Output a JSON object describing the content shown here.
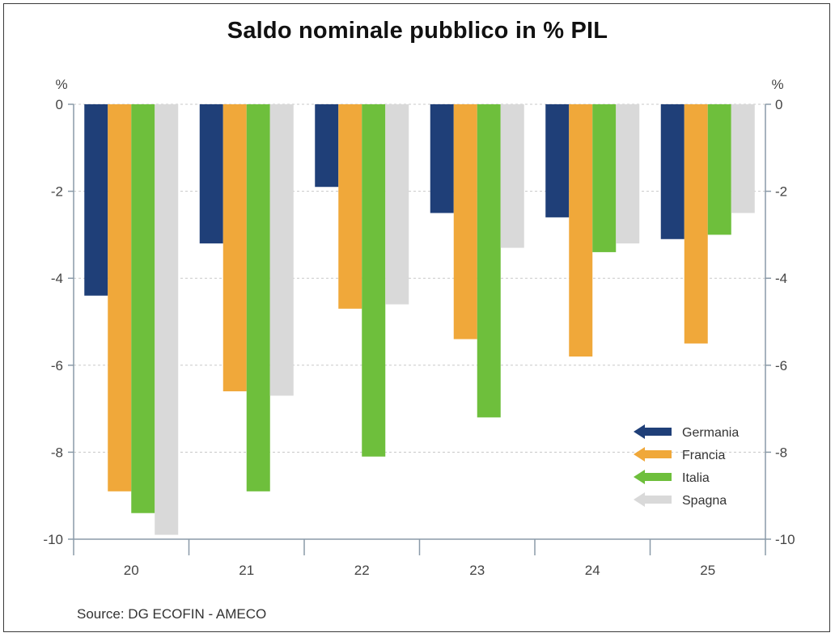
{
  "title": "Saldo nominale pubblico in % PIL",
  "source": "Source:   DG ECOFIN - AMECO",
  "chart_data": {
    "type": "bar",
    "categories": [
      "20",
      "21",
      "22",
      "23",
      "24",
      "25"
    ],
    "series": [
      {
        "name": "Germania",
        "color": "#1f3f78",
        "values": [
          -4.4,
          -3.2,
          -1.9,
          -2.5,
          -2.6,
          -3.1
        ]
      },
      {
        "name": "Francia",
        "color": "#f0a83a",
        "values": [
          -8.9,
          -6.6,
          -4.7,
          -5.4,
          -5.8,
          -5.5
        ]
      },
      {
        "name": "Italia",
        "color": "#6ebf3c",
        "values": [
          -9.4,
          -8.9,
          -8.1,
          -7.2,
          -3.4,
          -3.0
        ]
      },
      {
        "name": "Spagna",
        "color": "#d9d9d9",
        "values": [
          -9.9,
          -6.7,
          -4.6,
          -3.3,
          -3.2,
          -2.5
        ]
      }
    ],
    "ylim": [
      -10,
      0
    ],
    "yticks": [
      "0",
      "-2",
      "-4",
      "-6",
      "-8",
      "-10"
    ],
    "ytick_values": [
      0,
      -2,
      -4,
      -6,
      -8,
      -10
    ],
    "ylabel_left": "%",
    "ylabel_right": "%",
    "grid": true,
    "legend_position": "bottom-right"
  }
}
